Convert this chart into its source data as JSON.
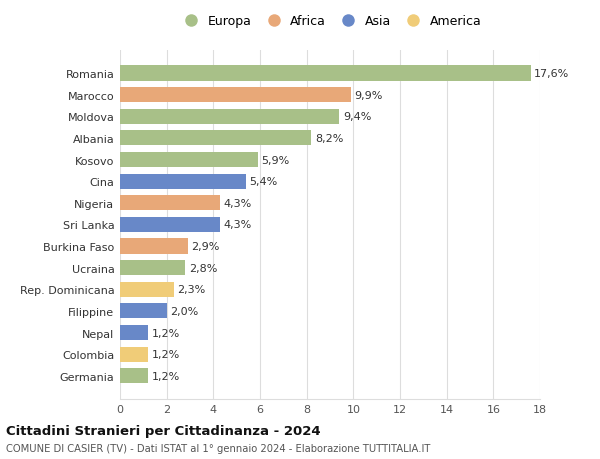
{
  "countries": [
    "Romania",
    "Marocco",
    "Moldova",
    "Albania",
    "Kosovo",
    "Cina",
    "Nigeria",
    "Sri Lanka",
    "Burkina Faso",
    "Ucraina",
    "Rep. Dominicana",
    "Filippine",
    "Nepal",
    "Colombia",
    "Germania"
  ],
  "values": [
    17.6,
    9.9,
    9.4,
    8.2,
    5.9,
    5.4,
    4.3,
    4.3,
    2.9,
    2.8,
    2.3,
    2.0,
    1.2,
    1.2,
    1.2
  ],
  "labels": [
    "17,6%",
    "9,9%",
    "9,4%",
    "8,2%",
    "5,9%",
    "5,4%",
    "4,3%",
    "4,3%",
    "2,9%",
    "2,8%",
    "2,3%",
    "2,0%",
    "1,2%",
    "1,2%",
    "1,2%"
  ],
  "continents": [
    "Europa",
    "Africa",
    "Europa",
    "Europa",
    "Europa",
    "Asia",
    "Africa",
    "Asia",
    "Africa",
    "Europa",
    "America",
    "Asia",
    "Asia",
    "America",
    "Europa"
  ],
  "colors": {
    "Europa": "#a8c088",
    "Africa": "#e8a878",
    "Asia": "#6888c8",
    "America": "#f0cc78"
  },
  "xlim": [
    0,
    18
  ],
  "xticks": [
    0,
    2,
    4,
    6,
    8,
    10,
    12,
    14,
    16,
    18
  ],
  "title": "Cittadini Stranieri per Cittadinanza - 2024",
  "subtitle": "COMUNE DI CASIER (TV) - Dati ISTAT al 1° gennaio 2024 - Elaborazione TUTTITALIA.IT",
  "background_color": "#ffffff",
  "grid_color": "#dddddd",
  "legend_order": [
    "Europa",
    "Africa",
    "Asia",
    "America"
  ]
}
